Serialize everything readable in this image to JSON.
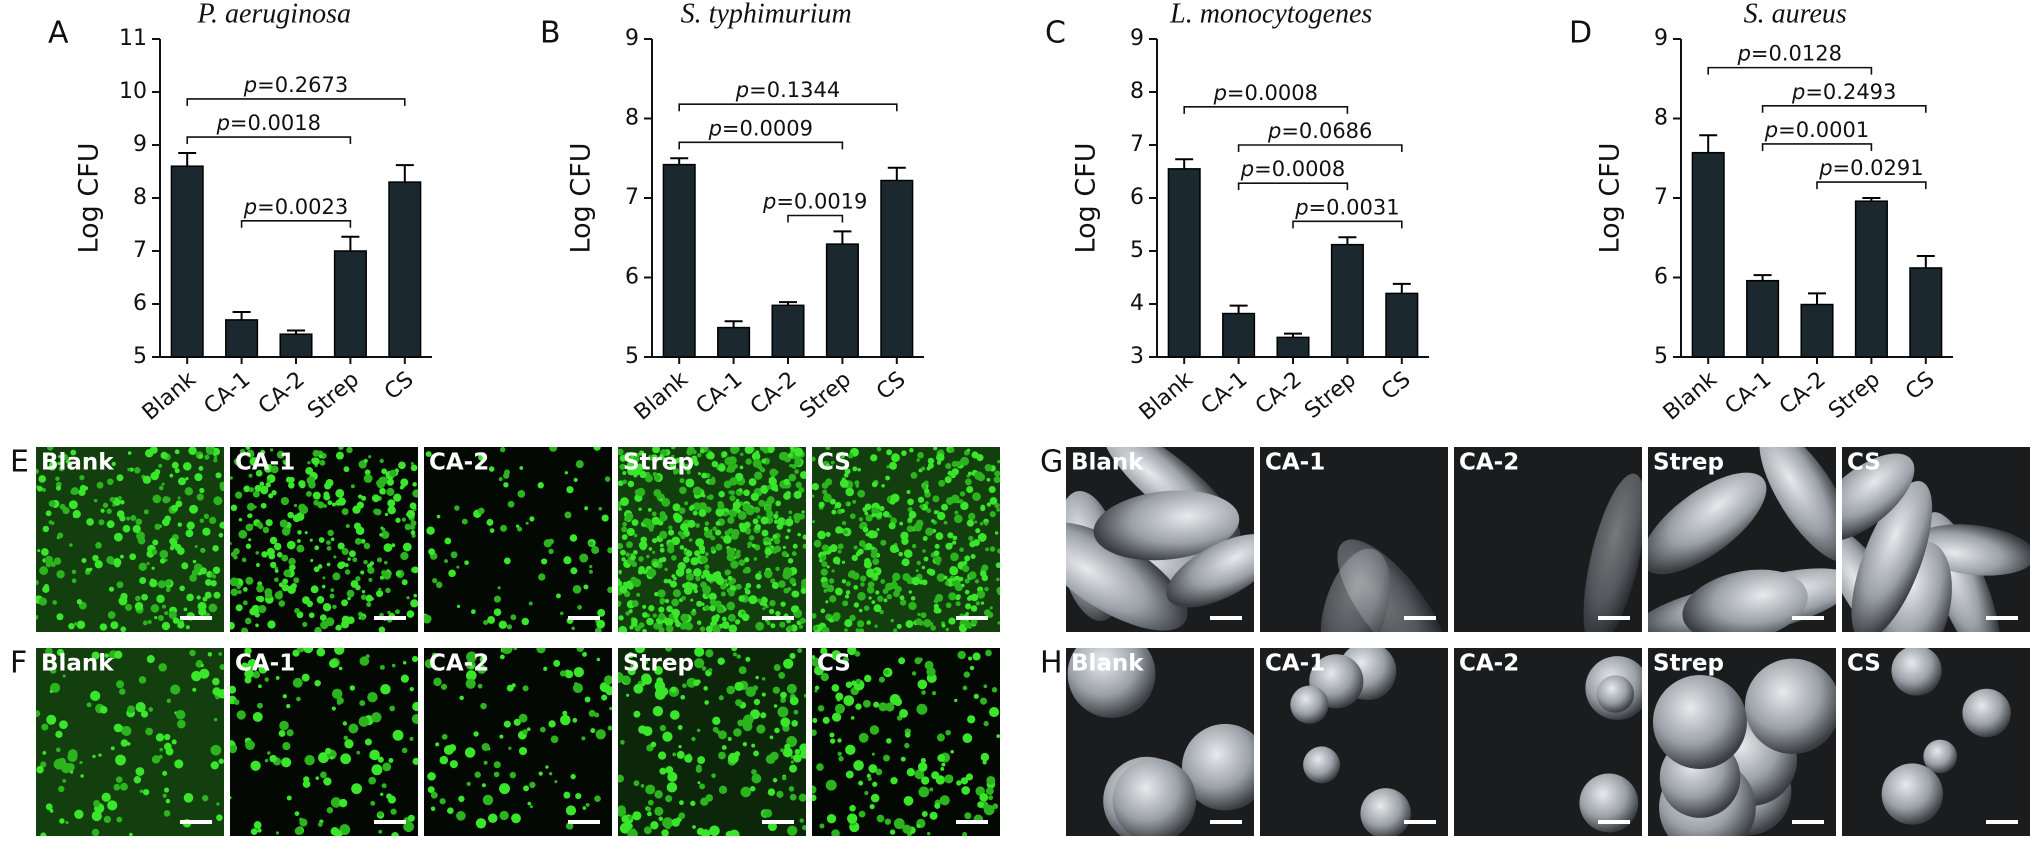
{
  "chart_data": [
    {
      "type": "bar",
      "panel": "A",
      "title": "P. aeruginosa",
      "y_label": "Log CFU",
      "color": "#1b2830",
      "categories": [
        "Blank",
        "CA-1",
        "CA-2",
        "Strep",
        "CS"
      ],
      "values": [
        8.6,
        5.7,
        5.43,
        7.0,
        8.3
      ],
      "errors": [
        0.25,
        0.15,
        0.07,
        0.27,
        0.32
      ],
      "ylim": [
        5,
        11
      ],
      "yticks": [
        5,
        6,
        7,
        8,
        9,
        10,
        11
      ],
      "annotations": [
        {
          "text": "p=0.0023",
          "between": [
            1,
            3
          ]
        },
        {
          "text": "p=0.0018",
          "between": [
            0,
            3
          ]
        },
        {
          "text": "p=0.2673",
          "between": [
            0,
            4
          ]
        }
      ]
    },
    {
      "type": "bar",
      "panel": "B",
      "title": "S. typhimurium",
      "y_label": "Log CFU",
      "color": "#1b2830",
      "categories": [
        "Blank",
        "CA-1",
        "CA-2",
        "Strep",
        "CS"
      ],
      "values": [
        7.42,
        5.37,
        5.65,
        6.42,
        7.22
      ],
      "errors": [
        0.08,
        0.08,
        0.04,
        0.16,
        0.16
      ],
      "ylim": [
        5,
        9
      ],
      "yticks": [
        5,
        6,
        7,
        8,
        9
      ],
      "annotations": [
        {
          "text": "p=0.0019",
          "between": [
            2,
            3
          ]
        },
        {
          "text": "p=0.0009",
          "between": [
            0,
            3
          ]
        },
        {
          "text": "p=0.1344",
          "between": [
            0,
            4
          ]
        }
      ]
    },
    {
      "type": "bar",
      "panel": "C",
      "title": "L. monocytogenes",
      "y_label": "Log CFU",
      "color": "#1b2830",
      "categories": [
        "Blank",
        "CA-1",
        "CA-2",
        "Strep",
        "CS"
      ],
      "values": [
        6.55,
        3.82,
        3.37,
        5.12,
        4.2
      ],
      "errors": [
        0.18,
        0.15,
        0.07,
        0.14,
        0.18
      ],
      "ylim": [
        3,
        9
      ],
      "yticks": [
        3,
        4,
        5,
        6,
        7,
        8,
        9
      ],
      "annotations": [
        {
          "text": "p=0.0031",
          "between": [
            2,
            4
          ]
        },
        {
          "text": "p=0.0008",
          "between": [
            1,
            3
          ]
        },
        {
          "text": "p=0.0686",
          "between": [
            1,
            4
          ]
        },
        {
          "text": "p=0.0008",
          "between": [
            0,
            3
          ]
        }
      ]
    },
    {
      "type": "bar",
      "panel": "D",
      "title": "S. aureus",
      "y_label": "Log CFU",
      "color": "#1b2830",
      "categories": [
        "Blank",
        "CA-1",
        "CA-2",
        "Strep",
        "CS"
      ],
      "values": [
        7.57,
        5.96,
        5.66,
        6.96,
        6.12
      ],
      "errors": [
        0.22,
        0.07,
        0.14,
        0.04,
        0.15
      ],
      "ylim": [
        5,
        9
      ],
      "yticks": [
        5,
        6,
        7,
        8,
        9
      ],
      "annotations": [
        {
          "text": "p=0.0291",
          "between": [
            2,
            4
          ]
        },
        {
          "text": "p=0.0001",
          "between": [
            1,
            3
          ]
        },
        {
          "text": "p=0.2493",
          "between": [
            1,
            4
          ]
        },
        {
          "text": "p=0.0128",
          "between": [
            0,
            3
          ]
        }
      ]
    }
  ],
  "image_rows": [
    {
      "label": "E",
      "kind": "fluorescence",
      "panels": [
        "Blank",
        "CA-1",
        "CA-2",
        "Strep",
        "CS"
      ]
    },
    {
      "label": "F",
      "kind": "fluorescence",
      "panels": [
        "Blank",
        "CA-1",
        "CA-2",
        "Strep",
        "CS"
      ]
    },
    {
      "label": "G",
      "kind": "sem",
      "panels": [
        "Blank",
        "CA-1",
        "CA-2",
        "Strep",
        "CS"
      ]
    },
    {
      "label": "H",
      "kind": "sem",
      "panels": [
        "Blank",
        "CA-1",
        "CA-2",
        "Strep",
        "CS"
      ]
    }
  ]
}
